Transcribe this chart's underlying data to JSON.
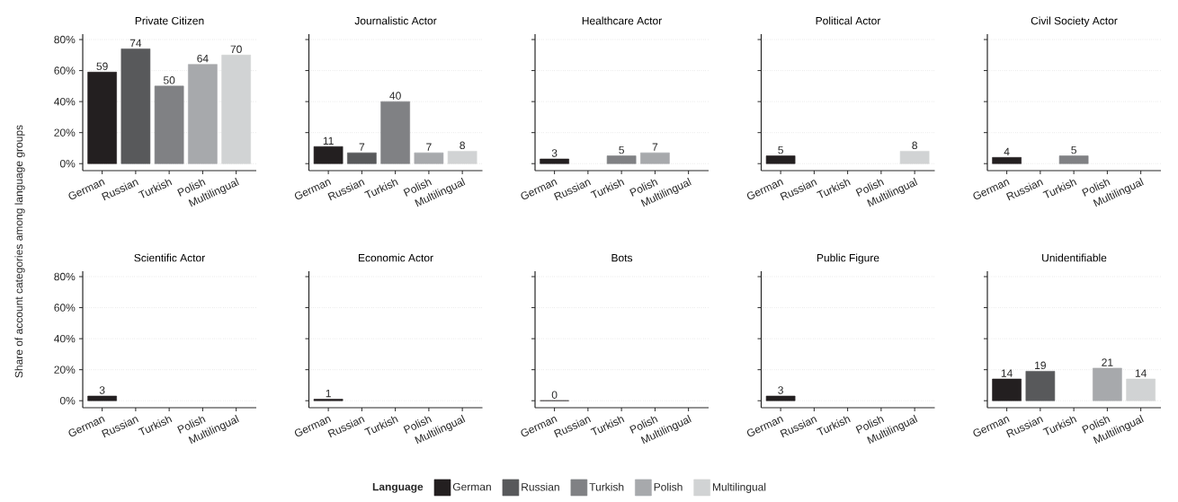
{
  "chart_data": [
    {
      "type": "bar",
      "title": "Private Citizen",
      "ylabel": "Share of account categories among language groups",
      "legend_title": "Language",
      "legend": "bottom",
      "categories": [
        "German",
        "Russian",
        "Turkish",
        "Polish",
        "Multilingual"
      ],
      "data_labels": true,
      "grid": "y",
      "ylim": [
        -4.5,
        83.5
      ],
      "yticks": [
        {
          "value": 0,
          "label": "0%"
        },
        {
          "value": 20,
          "label": "20%"
        },
        {
          "value": 40,
          "label": "40%"
        },
        {
          "value": 60,
          "label": "60%"
        },
        {
          "value": 80,
          "label": "80%"
        }
      ],
      "series": [
        {
          "name": "German",
          "color": "#231f20",
          "values": [
            59,
            null,
            null,
            null,
            null
          ]
        },
        {
          "name": "Russian",
          "color": "#58595b",
          "values": [
            null,
            74,
            null,
            null,
            null
          ]
        },
        {
          "name": "Turkish",
          "color": "#808184",
          "values": [
            null,
            null,
            50,
            null,
            null
          ]
        },
        {
          "name": "Polish",
          "color": "#a7a9ac",
          "values": [
            null,
            null,
            null,
            64,
            null
          ]
        },
        {
          "name": "Multilingual",
          "color": "#d1d3d4",
          "values": [
            null,
            null,
            null,
            null,
            70
          ]
        }
      ]
    },
    {
      "type": "bar",
      "title": "Journalistic Actor",
      "categories": [
        "German",
        "Russian",
        "Turkish",
        "Polish",
        "Multilingual"
      ],
      "data_labels": true,
      "grid": "y",
      "tick_labels": "x",
      "ylim": [
        -4.5,
        83.5
      ],
      "yticks": [
        {
          "value": 0,
          "label": null
        },
        {
          "value": 20,
          "label": null
        },
        {
          "value": 40,
          "label": null
        },
        {
          "value": 60,
          "label": null
        },
        {
          "value": 80,
          "label": null
        }
      ],
      "series": [
        {
          "color": "#231f20",
          "values": [
            11,
            null,
            null,
            null,
            null
          ]
        },
        {
          "color": "#58595b",
          "values": [
            null,
            7,
            null,
            null,
            null
          ]
        },
        {
          "color": "#808184",
          "values": [
            null,
            null,
            40,
            null,
            null
          ]
        },
        {
          "color": "#a7a9ac",
          "values": [
            null,
            null,
            null,
            7,
            null
          ]
        },
        {
          "color": "#d1d3d4",
          "values": [
            null,
            null,
            null,
            null,
            8
          ]
        }
      ]
    },
    {
      "type": "bar",
      "title": "Healthcare Actor",
      "categories": [
        "German",
        "Russian",
        "Turkish",
        "Polish",
        "Multilingual"
      ],
      "data_labels": true,
      "grid": "y",
      "tick_labels": "x",
      "ylim": [
        -4.5,
        83.5
      ],
      "yticks": [
        {
          "value": 0,
          "label": null
        },
        {
          "value": 20,
          "label": null
        },
        {
          "value": 40,
          "label": null
        },
        {
          "value": 60,
          "label": null
        },
        {
          "value": 80,
          "label": null
        }
      ],
      "series": [
        {
          "color": "#231f20",
          "values": [
            3,
            null,
            null,
            null,
            null
          ]
        },
        {
          "color": "#808184",
          "values": [
            null,
            null,
            5,
            null,
            null
          ]
        },
        {
          "color": "#a7a9ac",
          "values": [
            null,
            null,
            null,
            7,
            null
          ]
        }
      ]
    },
    {
      "type": "bar",
      "title": "Political Actor",
      "categories": [
        "German",
        "Russian",
        "Turkish",
        "Polish",
        "Multilingual"
      ],
      "data_labels": true,
      "grid": "y",
      "tick_labels": "x",
      "ylim": [
        -4.5,
        83.5
      ],
      "yticks": [
        {
          "value": 0,
          "label": null
        },
        {
          "value": 20,
          "label": null
        },
        {
          "value": 40,
          "label": null
        },
        {
          "value": 60,
          "label": null
        },
        {
          "value": 80,
          "label": null
        }
      ],
      "series": [
        {
          "color": "#231f20",
          "values": [
            5,
            null,
            null,
            null,
            null
          ]
        },
        {
          "color": "#d1d3d4",
          "values": [
            null,
            null,
            null,
            null,
            8
          ]
        }
      ]
    },
    {
      "type": "bar",
      "title": "Civil Society Actor",
      "categories": [
        "German",
        "Russian",
        "Turkish",
        "Polish",
        "Multilingual"
      ],
      "data_labels": true,
      "grid": "y",
      "tick_labels": "x",
      "ylim": [
        -4.5,
        83.5
      ],
      "yticks": [
        {
          "value": 0,
          "label": null
        },
        {
          "value": 20,
          "label": null
        },
        {
          "value": 40,
          "label": null
        },
        {
          "value": 60,
          "label": null
        },
        {
          "value": 80,
          "label": null
        }
      ],
      "series": [
        {
          "color": "#231f20",
          "values": [
            4,
            null,
            null,
            null,
            null
          ]
        },
        {
          "color": "#808184",
          "values": [
            null,
            null,
            5,
            null,
            null
          ]
        }
      ]
    },
    {
      "type": "bar",
      "title": "Scientific Actor",
      "categories": [
        "German",
        "Russian",
        "Turkish",
        "Polish",
        "Multilingual"
      ],
      "data_labels": true,
      "grid": "y",
      "ylim": [
        -4.5,
        83.5
      ],
      "yticks": [
        {
          "value": 0,
          "label": "0%"
        },
        {
          "value": 20,
          "label": "20%"
        },
        {
          "value": 40,
          "label": "40%"
        },
        {
          "value": 60,
          "label": "60%"
        },
        {
          "value": 80,
          "label": "80%"
        }
      ],
      "series": [
        {
          "color": "#231f20",
          "values": [
            3,
            null,
            null,
            null,
            null
          ]
        }
      ]
    },
    {
      "type": "bar",
      "title": "Economic Actor",
      "categories": [
        "German",
        "Russian",
        "Turkish",
        "Polish",
        "Multilingual"
      ],
      "data_labels": true,
      "grid": "y",
      "tick_labels": "x",
      "ylim": [
        -4.5,
        83.5
      ],
      "yticks": [
        {
          "value": 0,
          "label": null
        },
        {
          "value": 20,
          "label": null
        },
        {
          "value": 40,
          "label": null
        },
        {
          "value": 60,
          "label": null
        },
        {
          "value": 80,
          "label": null
        }
      ],
      "series": [
        {
          "color": "#231f20",
          "values": [
            1,
            null,
            null,
            null,
            null
          ]
        }
      ]
    },
    {
      "type": "bar",
      "title": "Bots",
      "categories": [
        "German",
        "Russian",
        "Turkish",
        "Polish",
        "Multilingual"
      ],
      "data_labels": true,
      "grid": "y",
      "tick_labels": "x",
      "ylim": [
        -4.5,
        83.5
      ],
      "yticks": [
        {
          "value": 0,
          "label": null
        },
        {
          "value": 20,
          "label": null
        },
        {
          "value": 40,
          "label": null
        },
        {
          "value": 60,
          "label": null
        },
        {
          "value": 80,
          "label": null
        }
      ],
      "series": [
        {
          "color": "#231f20",
          "values": [
            0,
            null,
            null,
            null,
            null
          ]
        }
      ]
    },
    {
      "type": "bar",
      "title": "Public Figure",
      "categories": [
        "German",
        "Russian",
        "Turkish",
        "Polish",
        "Multilingual"
      ],
      "data_labels": true,
      "grid": "y",
      "tick_labels": "x",
      "ylim": [
        -4.5,
        83.5
      ],
      "yticks": [
        {
          "value": 0,
          "label": null
        },
        {
          "value": 20,
          "label": null
        },
        {
          "value": 40,
          "label": null
        },
        {
          "value": 60,
          "label": null
        },
        {
          "value": 80,
          "label": null
        }
      ],
      "series": [
        {
          "color": "#231f20",
          "values": [
            3,
            null,
            null,
            null,
            null
          ]
        }
      ]
    },
    {
      "type": "bar",
      "title": "Unidentifiable",
      "categories": [
        "German",
        "Russian",
        "Turkish",
        "Polish",
        "Multilingual"
      ],
      "data_labels": true,
      "grid": "y",
      "tick_labels": "x",
      "ylim": [
        -4.5,
        83.5
      ],
      "yticks": [
        {
          "value": 0,
          "label": null
        },
        {
          "value": 20,
          "label": null
        },
        {
          "value": 40,
          "label": null
        },
        {
          "value": 60,
          "label": null
        },
        {
          "value": 80,
          "label": null
        }
      ],
      "series": [
        {
          "color": "#231f20",
          "values": [
            14,
            null,
            null,
            null,
            null
          ]
        },
        {
          "color": "#58595b",
          "values": [
            null,
            19,
            null,
            null,
            null
          ]
        },
        {
          "color": "#a7a9ac",
          "values": [
            null,
            null,
            null,
            21,
            null
          ]
        },
        {
          "color": "#d1d3d4",
          "values": [
            null,
            null,
            null,
            null,
            14
          ]
        }
      ]
    }
  ]
}
